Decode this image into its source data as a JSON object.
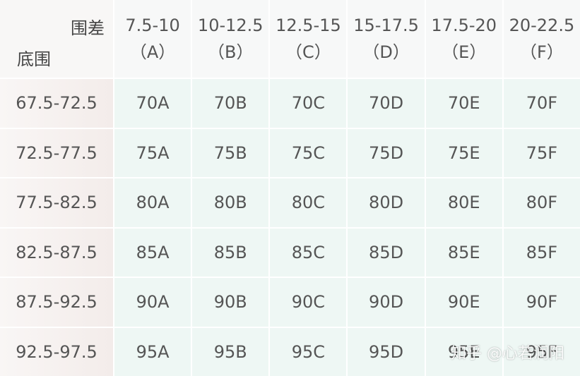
{
  "table": {
    "corner_top": "围差",
    "corner_bottom": "底围",
    "columns": [
      {
        "range": "7.5-10",
        "letter": "（A）"
      },
      {
        "range": "10-12.5",
        "letter": "（B）"
      },
      {
        "range": "12.5-15",
        "letter": "（C）"
      },
      {
        "range": "15-17.5",
        "letter": "（D）"
      },
      {
        "range": "17.5-20",
        "letter": "（E）"
      },
      {
        "range": "20-22.5",
        "letter": "（F）"
      }
    ],
    "rows": [
      {
        "label": "67.5-72.5",
        "cells": [
          "70A",
          "70B",
          "70C",
          "70D",
          "70E",
          "70F"
        ]
      },
      {
        "label": "72.5-77.5",
        "cells": [
          "75A",
          "75B",
          "75C",
          "75D",
          "75E",
          "75F"
        ]
      },
      {
        "label": "77.5-82.5",
        "cells": [
          "80A",
          "80B",
          "80C",
          "80D",
          "80E",
          "80F"
        ]
      },
      {
        "label": "82.5-87.5",
        "cells": [
          "85A",
          "85B",
          "85C",
          "85D",
          "85E",
          "85F"
        ]
      },
      {
        "label": "87.5-92.5",
        "cells": [
          "90A",
          "90B",
          "90C",
          "90D",
          "90E",
          "90F"
        ]
      },
      {
        "label": "92.5-97.5",
        "cells": [
          "95A",
          "95B",
          "95C",
          "95D",
          "95E",
          "95F"
        ]
      }
    ]
  },
  "watermark": "知乎 @心若润阳"
}
